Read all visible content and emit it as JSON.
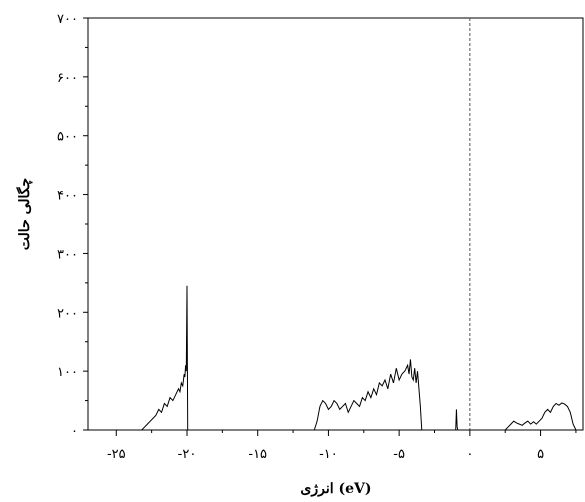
{
  "chart_data": {
    "type": "line",
    "title": "",
    "xlabel": "انرژی (eV)",
    "ylabel": "چگالی حالت",
    "xlim": [
      -27,
      8
    ],
    "ylim": [
      0,
      700
    ],
    "grid": false,
    "legend": "none",
    "x_ticks": [
      {
        "value": -25,
        "label": "-۲۵"
      },
      {
        "value": -20,
        "label": "-۲۰"
      },
      {
        "value": -15,
        "label": "-۱۵"
      },
      {
        "value": -10,
        "label": "-۱۰"
      },
      {
        "value": -5,
        "label": "-۵"
      },
      {
        "value": 0,
        "label": "۰"
      },
      {
        "value": 5,
        "label": "۵"
      }
    ],
    "y_ticks": [
      {
        "value": 0,
        "label": "۰"
      },
      {
        "value": 100,
        "label": "۱۰۰"
      },
      {
        "value": 200,
        "label": "۲۰۰"
      },
      {
        "value": 300,
        "label": "۳۰۰"
      },
      {
        "value": 400,
        "label": "۴۰۰"
      },
      {
        "value": 500,
        "label": "۵۰۰"
      },
      {
        "value": 600,
        "label": "۶۰۰"
      },
      {
        "value": 700,
        "label": "۷۰۰"
      }
    ],
    "fermi_level": 0,
    "colors": {
      "line": "#000000",
      "axis": "#000000",
      "fermi": "#555555"
    },
    "series": [
      {
        "x": [
          -27.0,
          -23.2,
          -23.0,
          -22.8,
          -22.6,
          -22.4,
          -22.2,
          -22.0,
          -21.8,
          -21.6,
          -21.4,
          -21.2,
          -21.0,
          -20.8,
          -20.6,
          -20.5,
          -20.4,
          -20.3,
          -20.2,
          -20.15,
          -20.1,
          -20.05,
          -20.0,
          -19.95,
          -19.9,
          -19.8,
          -11.0,
          -10.8,
          -10.6,
          -10.4,
          -10.2,
          -10.0,
          -9.8,
          -9.6,
          -9.4,
          -9.2,
          -9.0,
          -8.8,
          -8.6,
          -8.4,
          -8.2,
          -8.0,
          -7.8,
          -7.6,
          -7.4,
          -7.2,
          -7.0,
          -6.8,
          -6.6,
          -6.4,
          -6.2,
          -6.0,
          -5.8,
          -5.6,
          -5.4,
          -5.2,
          -5.0,
          -4.8,
          -4.6,
          -4.4,
          -4.3,
          -4.2,
          -4.1,
          -4.0,
          -3.9,
          -3.8,
          -3.7,
          -3.6,
          -3.5,
          -3.45,
          -3.4,
          -1.0,
          -0.95,
          -0.9,
          -0.85,
          -0.8,
          2.5,
          2.7,
          2.9,
          3.1,
          3.3,
          3.5,
          3.7,
          3.9,
          4.1,
          4.3,
          4.5,
          4.7,
          4.9,
          5.1,
          5.3,
          5.5,
          5.7,
          5.9,
          6.1,
          6.3,
          6.5,
          6.7,
          6.9,
          7.1,
          7.3,
          7.5,
          8.0
        ],
        "y": [
          0,
          0,
          5,
          10,
          15,
          20,
          25,
          35,
          30,
          45,
          40,
          55,
          50,
          60,
          70,
          65,
          80,
          75,
          95,
          90,
          110,
          100,
          245,
          0,
          0,
          0,
          0,
          15,
          40,
          50,
          45,
          35,
          40,
          50,
          45,
          35,
          40,
          45,
          30,
          40,
          50,
          45,
          40,
          55,
          50,
          65,
          55,
          70,
          60,
          80,
          75,
          85,
          70,
          95,
          80,
          105,
          85,
          95,
          100,
          110,
          95,
          120,
          90,
          85,
          105,
          80,
          100,
          70,
          40,
          20,
          0,
          0,
          35,
          5,
          0,
          0,
          0,
          5,
          10,
          15,
          12,
          10,
          8,
          12,
          15,
          10,
          14,
          10,
          15,
          20,
          30,
          35,
          30,
          40,
          45,
          42,
          46,
          44,
          40,
          30,
          10,
          0,
          0
        ]
      }
    ]
  }
}
